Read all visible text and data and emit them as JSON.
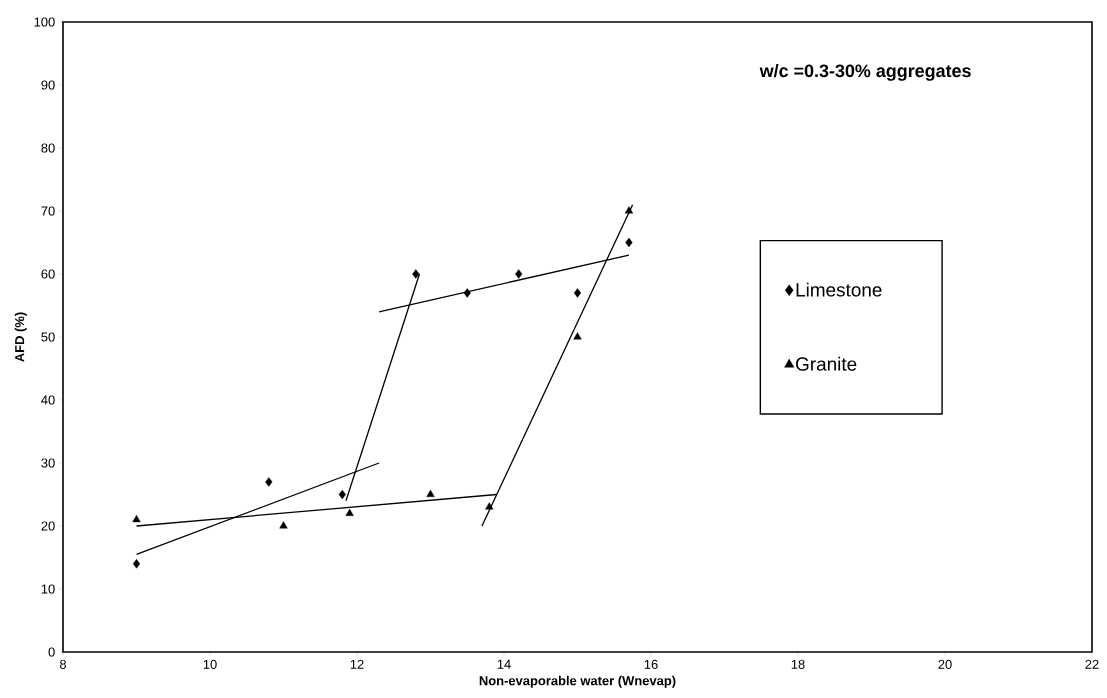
{
  "chart_data": {
    "type": "scatter",
    "xlabel": "Non-evaporable water (Wnevap)",
    "ylabel": "AFD (%)",
    "xlim": [
      8,
      22
    ],
    "xticks": [
      8,
      10,
      12,
      14,
      16,
      18,
      20,
      22
    ],
    "ylim": [
      0,
      100
    ],
    "yticks": [
      0,
      10,
      20,
      30,
      40,
      50,
      60,
      70,
      80,
      90,
      100
    ],
    "grid": false,
    "legend": "right",
    "annotations": [
      "w/c =0.3-30% aggregates"
    ],
    "series": [
      {
        "name": "Limestone",
        "marker": "diamond",
        "color": "#000000",
        "x": [
          9.0,
          10.8,
          11.8,
          12.8,
          13.5,
          14.2,
          15.0,
          15.7
        ],
        "values": [
          14,
          27,
          25,
          60,
          57,
          60,
          57,
          65
        ]
      },
      {
        "name": "Granite",
        "marker": "triangle",
        "color": "#000000",
        "x": [
          9.0,
          11.0,
          11.9,
          13.0,
          13.8,
          15.0,
          15.7
        ],
        "values": [
          21,
          20,
          22,
          25,
          23,
          50,
          70
        ]
      },
      {
        "type": "line",
        "marker": "none",
        "color": "#000000",
        "x": [
          9.0,
          12.3
        ],
        "values": [
          15.5,
          30
        ]
      },
      {
        "type": "line",
        "marker": "none",
        "color": "#000000",
        "x": [
          11.85,
          12.85
        ],
        "values": [
          24,
          60
        ]
      },
      {
        "type": "line",
        "marker": "none",
        "color": "#000000",
        "x": [
          12.3,
          15.7
        ],
        "values": [
          54,
          63
        ]
      },
      {
        "type": "line",
        "marker": "none",
        "color": "#000000",
        "x": [
          9.0,
          13.9
        ],
        "values": [
          20,
          25
        ]
      },
      {
        "type": "line",
        "marker": "none",
        "color": "#000000",
        "x": [
          13.7,
          15.75
        ],
        "values": [
          20,
          71
        ]
      }
    ]
  }
}
